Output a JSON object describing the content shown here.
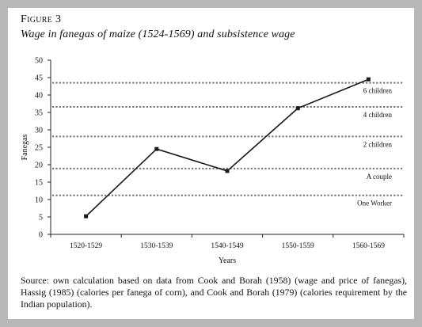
{
  "figure": {
    "label": "Figure 3",
    "title": "Wage in fanegas of maize (1524-1569) and subsistence wage",
    "source": "Source: own calculation based on data from Cook and Borah (1958) (wage and price of fanegas), Hassig (1985) (calories per fanega of corn), and Cook and Borah (1979) (calories requirement by the Indian population)."
  },
  "colors": {
    "frame": "#b8b8b8",
    "line": "#1a1a1a",
    "reference": "#707070"
  },
  "chart_data": {
    "type": "line",
    "title": "",
    "xlabel": "Years",
    "ylabel": "Fanegas",
    "categories": [
      "1520-1529",
      "1530-1539",
      "1540-1549",
      "1550-1559",
      "1560-1569"
    ],
    "ylim": [
      0,
      50
    ],
    "yticks": [
      0,
      5,
      10,
      15,
      20,
      25,
      30,
      35,
      40,
      45,
      50
    ],
    "grid": false,
    "series": [
      {
        "values": [
          5.2,
          24.5,
          18.2,
          36.2,
          44.5
        ]
      }
    ],
    "reference_lines": [
      {
        "label": "One Worker",
        "value": 11.2
      },
      {
        "label": "A couple",
        "value": 18.9
      },
      {
        "label": "2 children",
        "value": 28.1
      },
      {
        "label": "4 children",
        "value": 36.6
      },
      {
        "label": "6 children",
        "value": 43.5
      }
    ]
  }
}
